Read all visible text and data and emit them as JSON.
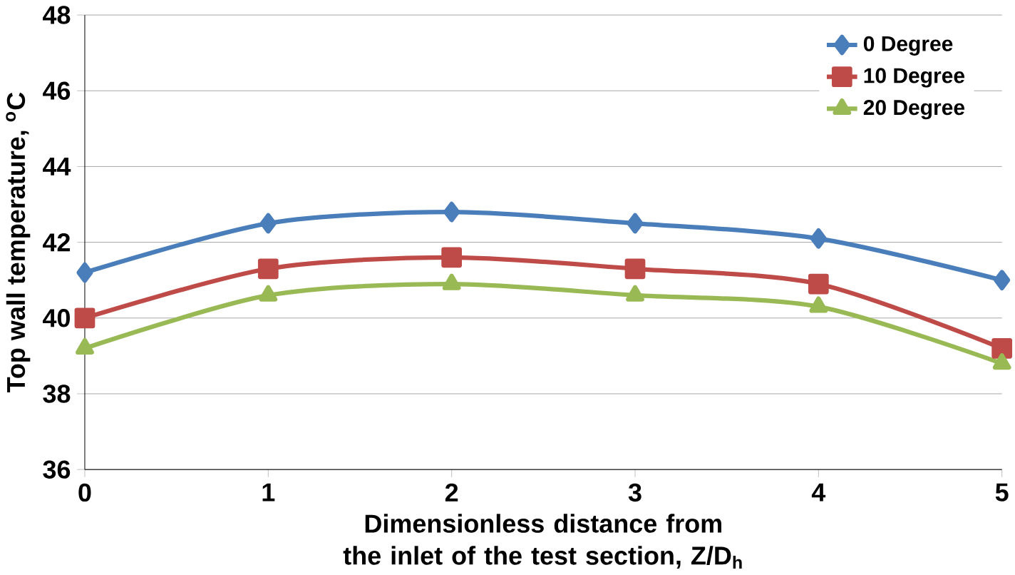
{
  "chart_data": {
    "type": "line",
    "xlabel": "Dimensionless  distance from the inlet of the test section, Z/D$_{h}$",
    "ylabel": "Top wall temperature, $^{o}$C",
    "x": [
      0,
      1,
      2,
      3,
      4,
      5
    ],
    "xlim": [
      0,
      5
    ],
    "xticks": [
      0,
      1,
      2,
      3,
      4,
      5
    ],
    "ylim": [
      36,
      48
    ],
    "yticks": [
      36,
      38,
      40,
      42,
      44,
      46,
      48
    ],
    "grid": "y",
    "legend": "top right",
    "series": [
      {
        "name": "0 Degree",
        "color": "#4a7ebb",
        "marker": "diamond",
        "values": [
          41.2,
          42.5,
          42.8,
          42.5,
          42.1,
          41.0
        ]
      },
      {
        "name": "10 Degree",
        "color": "#be4b48",
        "marker": "square",
        "values": [
          40.0,
          41.3,
          41.6,
          41.3,
          40.9,
          39.2
        ]
      },
      {
        "name": "20 Degree",
        "color": "#98b954",
        "marker": "triangle",
        "values": [
          39.2,
          40.6,
          40.9,
          40.6,
          40.3,
          38.8
        ]
      }
    ]
  }
}
